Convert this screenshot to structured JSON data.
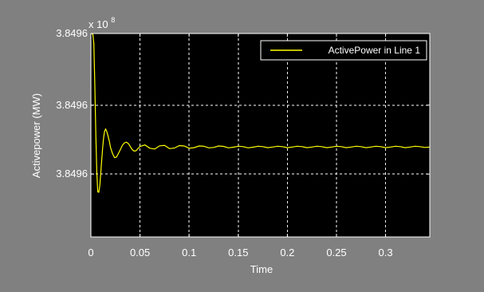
{
  "chart_data": {
    "type": "line",
    "title": "",
    "xlabel": "Time",
    "ylabel": "Activepower (MW)",
    "y_exponent_label": "x 10",
    "y_exponent_power": "8",
    "xlim": [
      0,
      0.345
    ],
    "ylim_normalized": [
      0,
      1
    ],
    "x_ticks": [
      0,
      0.05,
      0.1,
      0.15,
      0.2,
      0.25,
      0.3
    ],
    "x_tick_labels": [
      "0",
      "0.05",
      "0.1",
      "0.15",
      "0.2",
      "0.25",
      "0.3"
    ],
    "y_ticks_normalized": [
      0.309,
      0.648,
      1.0
    ],
    "y_tick_labels": [
      "3.8496",
      "3.8496",
      "3.8496"
    ],
    "grid": true,
    "legend_position": "top-right",
    "colors": {
      "background": "#808080",
      "plot_background": "#000000",
      "line": "#ffff00",
      "grid": "#ffffff",
      "text": "#ffffff"
    },
    "series": [
      {
        "name": "ActivePower in Line 1",
        "x": [
          0,
          0.001,
          0.002,
          0.003,
          0.004,
          0.005,
          0.006,
          0.007,
          0.008,
          0.009,
          0.01,
          0.011,
          0.012,
          0.013,
          0.014,
          0.015,
          0.016,
          0.017,
          0.018,
          0.019,
          0.02,
          0.022,
          0.024,
          0.026,
          0.028,
          0.03,
          0.032,
          0.034,
          0.036,
          0.038,
          0.04,
          0.042,
          0.044,
          0.046,
          0.048,
          0.05,
          0.055,
          0.06,
          0.065,
          0.07,
          0.075,
          0.08,
          0.085,
          0.09,
          0.095,
          0.1,
          0.105,
          0.11,
          0.115,
          0.12,
          0.125,
          0.13,
          0.135,
          0.14,
          0.145,
          0.15,
          0.155,
          0.16,
          0.165,
          0.17,
          0.175,
          0.18,
          0.185,
          0.19,
          0.195,
          0.2,
          0.205,
          0.21,
          0.215,
          0.22,
          0.225,
          0.23,
          0.235,
          0.24,
          0.245,
          0.25,
          0.255,
          0.26,
          0.265,
          0.27,
          0.275,
          0.28,
          0.285,
          0.29,
          0.295,
          0.3,
          0.305,
          0.31,
          0.315,
          0.32,
          0.325,
          0.33,
          0.335,
          0.34,
          0.345
        ],
        "y": [
          1.0,
          1.0,
          0.995,
          0.95,
          0.75,
          0.5,
          0.32,
          0.222,
          0.22,
          0.25,
          0.31,
          0.38,
          0.44,
          0.49,
          0.52,
          0.53,
          0.52,
          0.505,
          0.485,
          0.465,
          0.44,
          0.41,
          0.39,
          0.392,
          0.41,
          0.43,
          0.45,
          0.462,
          0.466,
          0.46,
          0.445,
          0.43,
          0.422,
          0.424,
          0.435,
          0.445,
          0.452,
          0.436,
          0.432,
          0.448,
          0.45,
          0.434,
          0.437,
          0.449,
          0.447,
          0.436,
          0.439,
          0.447,
          0.446,
          0.438,
          0.44,
          0.447,
          0.445,
          0.438,
          0.441,
          0.446,
          0.444,
          0.438,
          0.441,
          0.446,
          0.444,
          0.439,
          0.442,
          0.446,
          0.444,
          0.439,
          0.442,
          0.446,
          0.444,
          0.439,
          0.442,
          0.446,
          0.444,
          0.439,
          0.442,
          0.446,
          0.444,
          0.439,
          0.442,
          0.446,
          0.444,
          0.439,
          0.442,
          0.446,
          0.444,
          0.439,
          0.442,
          0.446,
          0.444,
          0.439,
          0.442,
          0.446,
          0.444,
          0.44,
          0.442
        ]
      }
    ]
  }
}
